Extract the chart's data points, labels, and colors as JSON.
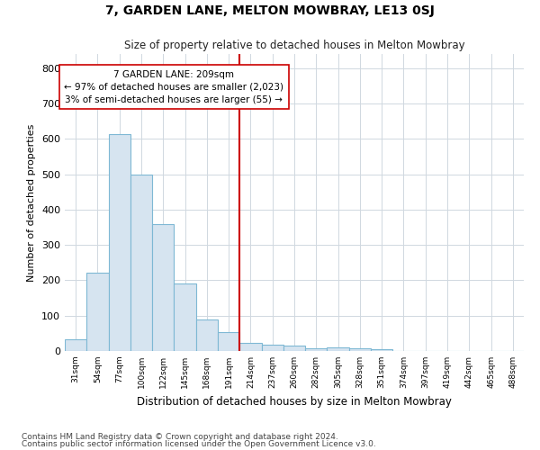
{
  "title": "7, GARDEN LANE, MELTON MOWBRAY, LE13 0SJ",
  "subtitle": "Size of property relative to detached houses in Melton Mowbray",
  "xlabel": "Distribution of detached houses by size in Melton Mowbray",
  "ylabel": "Number of detached properties",
  "bar_labels": [
    "31sqm",
    "54sqm",
    "77sqm",
    "100sqm",
    "122sqm",
    "145sqm",
    "168sqm",
    "191sqm",
    "214sqm",
    "237sqm",
    "260sqm",
    "282sqm",
    "305sqm",
    "328sqm",
    "351sqm",
    "374sqm",
    "397sqm",
    "419sqm",
    "442sqm",
    "465sqm",
    "488sqm"
  ],
  "bar_values": [
    32,
    222,
    613,
    500,
    360,
    191,
    90,
    53,
    23,
    17,
    15,
    8,
    10,
    7,
    5,
    0,
    0,
    0,
    0,
    0,
    0
  ],
  "bar_color": "#d6e4f0",
  "bar_edge_color": "#7eb8d4",
  "vline_index": 8,
  "vline_color": "#cc0000",
  "annotation_text": "7 GARDEN LANE: 209sqm\n← 97% of detached houses are smaller (2,023)\n3% of semi-detached houses are larger (55) →",
  "annotation_box_facecolor": "#ffffff",
  "annotation_box_edgecolor": "#cc0000",
  "ylim": [
    0,
    840
  ],
  "yticks": [
    0,
    100,
    200,
    300,
    400,
    500,
    600,
    700,
    800
  ],
  "bg_color": "#ffffff",
  "plot_bg_color": "#ffffff",
  "grid_color": "#d0d8e0",
  "footer1": "Contains HM Land Registry data © Crown copyright and database right 2024.",
  "footer2": "Contains public sector information licensed under the Open Government Licence v3.0."
}
